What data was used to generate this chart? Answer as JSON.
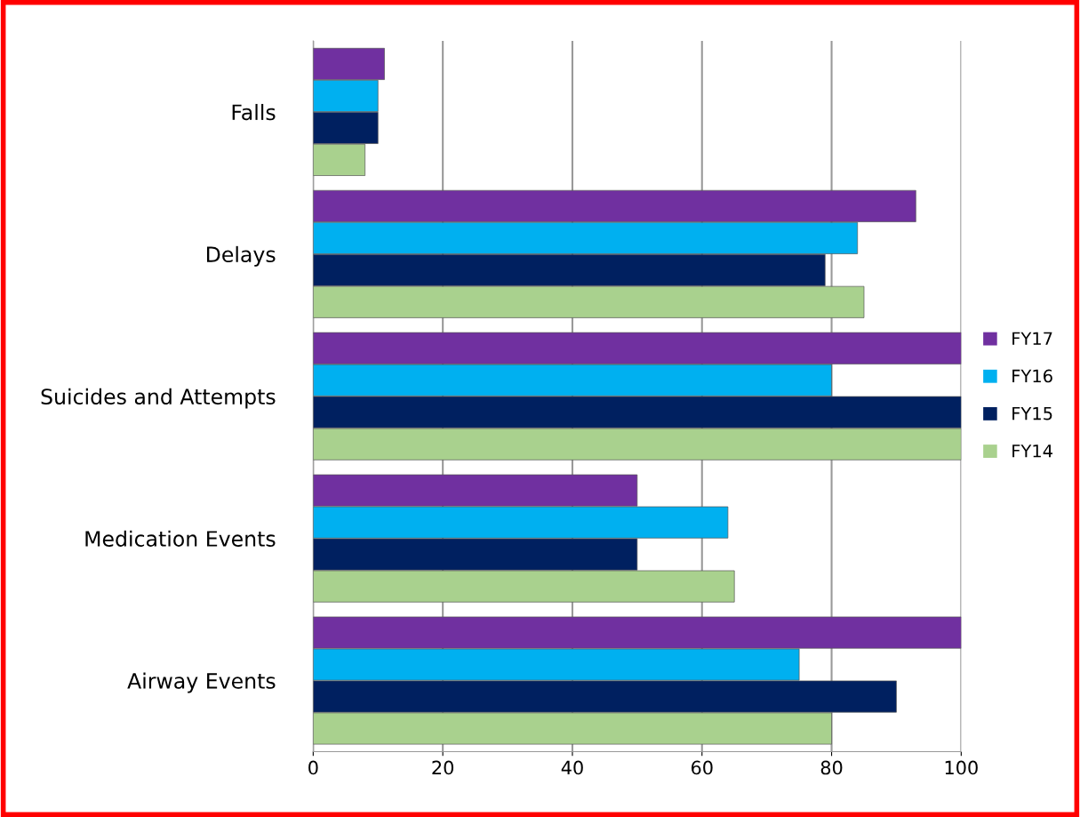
{
  "chart_data": {
    "type": "bar",
    "orientation": "horizontal",
    "categories": [
      "Falls",
      "Delays",
      "Suicides and Attempts",
      "Medication Events",
      "Airway Events"
    ],
    "series": [
      {
        "name": "FY17",
        "color": "#7030a0",
        "values": [
          11,
          93,
          100,
          50,
          100
        ]
      },
      {
        "name": "FY16",
        "color": "#00b0f0",
        "values": [
          10,
          84,
          80,
          64,
          75
        ]
      },
      {
        "name": "FY15",
        "color": "#002060",
        "values": [
          10,
          79,
          100,
          50,
          90
        ]
      },
      {
        "name": "FY14",
        "color": "#a9d18e",
        "values": [
          8,
          85,
          100,
          65,
          80
        ]
      }
    ],
    "xlim": [
      0,
      100
    ],
    "xticks": [
      0,
      20,
      40,
      60,
      80,
      100
    ],
    "grid": "x",
    "legend": "right"
  }
}
